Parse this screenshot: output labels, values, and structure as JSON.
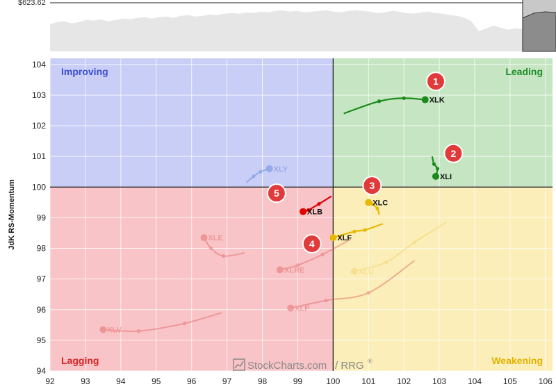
{
  "price_panel": {
    "value_label": "$623.62",
    "line_color": "#222222",
    "area_color": "#e6e6e6",
    "series": [
      40,
      43,
      44,
      41,
      43,
      46,
      45,
      47,
      44,
      46,
      48,
      47,
      49,
      50,
      48,
      50,
      51,
      49,
      52,
      53,
      51,
      52,
      54,
      53,
      55,
      56,
      55,
      57,
      56,
      58,
      57,
      59,
      60,
      58,
      59,
      57,
      58,
      59,
      60,
      58,
      57,
      59,
      60,
      59,
      58,
      56,
      57,
      59,
      58,
      56,
      55,
      57,
      58,
      56,
      55,
      53,
      52,
      49,
      44,
      30,
      34,
      38,
      35,
      32,
      34,
      33
    ],
    "highlight_series": [
      48,
      55,
      57,
      56
    ]
  },
  "chart_data": {
    "type": "scatter",
    "xlabel": "",
    "ylabel": "JdK RS-Momentum",
    "xlim": [
      92,
      106.2
    ],
    "ylim": [
      94,
      104.2
    ],
    "xticks": [
      92,
      93,
      94,
      95,
      96,
      97,
      98,
      99,
      100,
      101,
      102,
      103,
      104,
      105,
      106
    ],
    "yticks": [
      94,
      95,
      96,
      97,
      98,
      99,
      100,
      101,
      102,
      103,
      104
    ],
    "grid": true,
    "center": [
      100,
      100
    ],
    "quadrants": [
      {
        "name": "Improving",
        "color": "#c9cef7",
        "label_color": "#3c4fd1",
        "position": "top-left"
      },
      {
        "name": "Leading",
        "color": "#c6e5c3",
        "label_color": "#1f8f2a",
        "position": "top-right"
      },
      {
        "name": "Lagging",
        "color": "#f9c4c7",
        "label_color": "#d62424",
        "position": "bottom-left"
      },
      {
        "name": "Weakening",
        "color": "#fbeeb8",
        "label_color": "#e2b100",
        "position": "bottom-right"
      }
    ],
    "series": [
      {
        "name": "XLK",
        "color": "#1a8a1a",
        "faded": false,
        "points": [
          [
            100.3,
            102.4
          ],
          [
            101.3,
            102.8
          ],
          [
            102.0,
            102.9
          ],
          [
            102.6,
            102.85
          ]
        ]
      },
      {
        "name": "XLI",
        "color": "#1a8a1a",
        "faded": false,
        "points": [
          [
            102.8,
            101.0
          ],
          [
            102.85,
            100.75
          ],
          [
            102.95,
            100.6
          ],
          [
            102.9,
            100.35
          ]
        ]
      },
      {
        "name": "XLC",
        "color": "#e6b800",
        "faded": false,
        "points": [
          [
            101.3,
            99.1
          ],
          [
            101.25,
            99.3
          ],
          [
            101.1,
            99.45
          ],
          [
            101.0,
            99.5
          ]
        ]
      },
      {
        "name": "XLF",
        "color": "#e6b800",
        "faded": false,
        "points": [
          [
            101.4,
            98.8
          ],
          [
            100.9,
            98.6
          ],
          [
            100.6,
            98.55
          ],
          [
            100.0,
            98.35
          ]
        ]
      },
      {
        "name": "XLB",
        "color": "#e00000",
        "faded": false,
        "points": [
          [
            99.95,
            99.7
          ],
          [
            99.6,
            99.45
          ],
          [
            99.3,
            99.25
          ],
          [
            99.15,
            99.2
          ]
        ]
      },
      {
        "name": "XLY",
        "color": "#5a7fd6",
        "faded": true,
        "points": [
          [
            97.55,
            100.15
          ],
          [
            97.75,
            100.35
          ],
          [
            97.95,
            100.5
          ],
          [
            98.2,
            100.6
          ]
        ]
      },
      {
        "name": "XLE",
        "color": "#e06060",
        "faded": true,
        "points": [
          [
            97.5,
            97.85
          ],
          [
            96.9,
            97.75
          ],
          [
            96.55,
            98.0
          ],
          [
            96.35,
            98.35
          ]
        ]
      },
      {
        "name": "XLRE",
        "color": "#e06060",
        "faded": true,
        "points": [
          [
            100.5,
            98.3
          ],
          [
            99.7,
            97.8
          ],
          [
            99.0,
            97.45
          ],
          [
            98.5,
            97.3
          ]
        ]
      },
      {
        "name": "XLU",
        "color": "#f0d060",
        "faded": true,
        "points": [
          [
            103.2,
            98.85
          ],
          [
            102.3,
            98.2
          ],
          [
            101.5,
            97.55
          ],
          [
            100.6,
            97.25
          ]
        ]
      },
      {
        "name": "XLP",
        "color": "#e06060",
        "faded": true,
        "points": [
          [
            102.3,
            97.6
          ],
          [
            101.0,
            96.55
          ],
          [
            99.8,
            96.3
          ],
          [
            98.8,
            96.05
          ]
        ]
      },
      {
        "name": "XLV",
        "color": "#e06060",
        "faded": true,
        "points": [
          [
            96.85,
            95.9
          ],
          [
            95.8,
            95.55
          ],
          [
            94.5,
            95.3
          ],
          [
            93.5,
            95.35
          ]
        ]
      }
    ],
    "badges": [
      {
        "number": "1",
        "x": 102.9,
        "y": 103.45
      },
      {
        "number": "2",
        "x": 103.4,
        "y": 101.1
      },
      {
        "number": "3",
        "x": 101.1,
        "y": 100.05
      },
      {
        "number": "4",
        "x": 99.4,
        "y": 98.15
      },
      {
        "number": "5",
        "x": 98.4,
        "y": 99.8
      }
    ],
    "badge_color": "#e03a3a",
    "watermark": "StockCharts.com",
    "watermark_suffix": "/ RRG",
    "watermark_reg": "®"
  }
}
